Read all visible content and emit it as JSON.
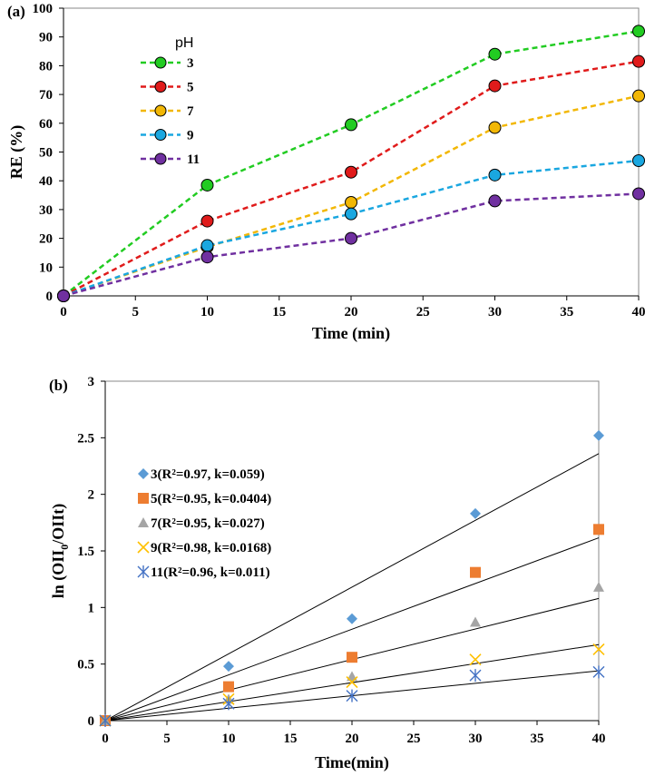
{
  "chart_data": [
    {
      "panel_label": "(a)",
      "type": "line",
      "xlabel": "Time (min)",
      "ylabel": "RE (%)",
      "xlim": [
        0,
        40
      ],
      "ylim": [
        0,
        100
      ],
      "xticks": [
        "0",
        "5",
        "10",
        "15",
        "20",
        "25",
        "30",
        "35",
        "40"
      ],
      "yticks": [
        "0",
        "10",
        "20",
        "30",
        "40",
        "50",
        "60",
        "70",
        "80",
        "90",
        "100"
      ],
      "legend_title": "pH",
      "legend_position": "top-left",
      "x": [
        0,
        10,
        20,
        30,
        40
      ],
      "series": [
        {
          "name": "3",
          "color": "#22cc22",
          "values": [
            0,
            38.5,
            59.5,
            84,
            92
          ]
        },
        {
          "name": "5",
          "color": "#e01b1b",
          "values": [
            0,
            26,
            43,
            73,
            81.5
          ]
        },
        {
          "name": "7",
          "color": "#f2b705",
          "values": [
            0,
            17,
            32.5,
            58.5,
            69.5
          ]
        },
        {
          "name": "9",
          "color": "#1aa7e0",
          "values": [
            0,
            17.5,
            28.5,
            42,
            47
          ]
        },
        {
          "name": "11",
          "color": "#7030a0",
          "values": [
            0,
            13.5,
            20,
            33,
            35.5
          ]
        }
      ]
    },
    {
      "panel_label": "(b)",
      "type": "scatter",
      "xlabel": "Time(min)",
      "ylabel": "ln (OII0/OIIt)",
      "xlim": [
        0,
        40
      ],
      "ylim": [
        0,
        3
      ],
      "xticks": [
        "0",
        "5",
        "10",
        "15",
        "20",
        "25",
        "30",
        "35",
        "40"
      ],
      "yticks": [
        "0",
        "0.5",
        "1",
        "1.5",
        "2",
        "2.5",
        "3"
      ],
      "legend_position": "upper-left",
      "x": [
        0,
        10,
        20,
        30,
        40
      ],
      "series": [
        {
          "name": "3(R²=0.97, k=0.059)",
          "marker": "diamond",
          "color": "#5b9bd5",
          "k": 0.059,
          "values": [
            0,
            0.48,
            0.9,
            1.83,
            2.52
          ]
        },
        {
          "name": "5(R²=0.95, k=0.0404)",
          "marker": "square",
          "color": "#ed7d31",
          "k": 0.0404,
          "values": [
            0,
            0.3,
            0.56,
            1.31,
            1.69
          ]
        },
        {
          "name": "7(R²=0.95, k=0.027)",
          "marker": "triangle",
          "color": "#a5a5a5",
          "k": 0.027,
          "values": [
            0,
            0.19,
            0.39,
            0.87,
            1.18
          ]
        },
        {
          "name": "9(R²=0.98, k=0.0168)",
          "marker": "x",
          "color": "#ffc000",
          "k": 0.0168,
          "values": [
            0,
            0.19,
            0.34,
            0.54,
            0.63
          ]
        },
        {
          "name": "11(R²=0.96, k=0.011)",
          "marker": "star",
          "color": "#4472c4",
          "k": 0.011,
          "values": [
            0,
            0.15,
            0.22,
            0.4,
            0.43
          ]
        }
      ]
    }
  ]
}
